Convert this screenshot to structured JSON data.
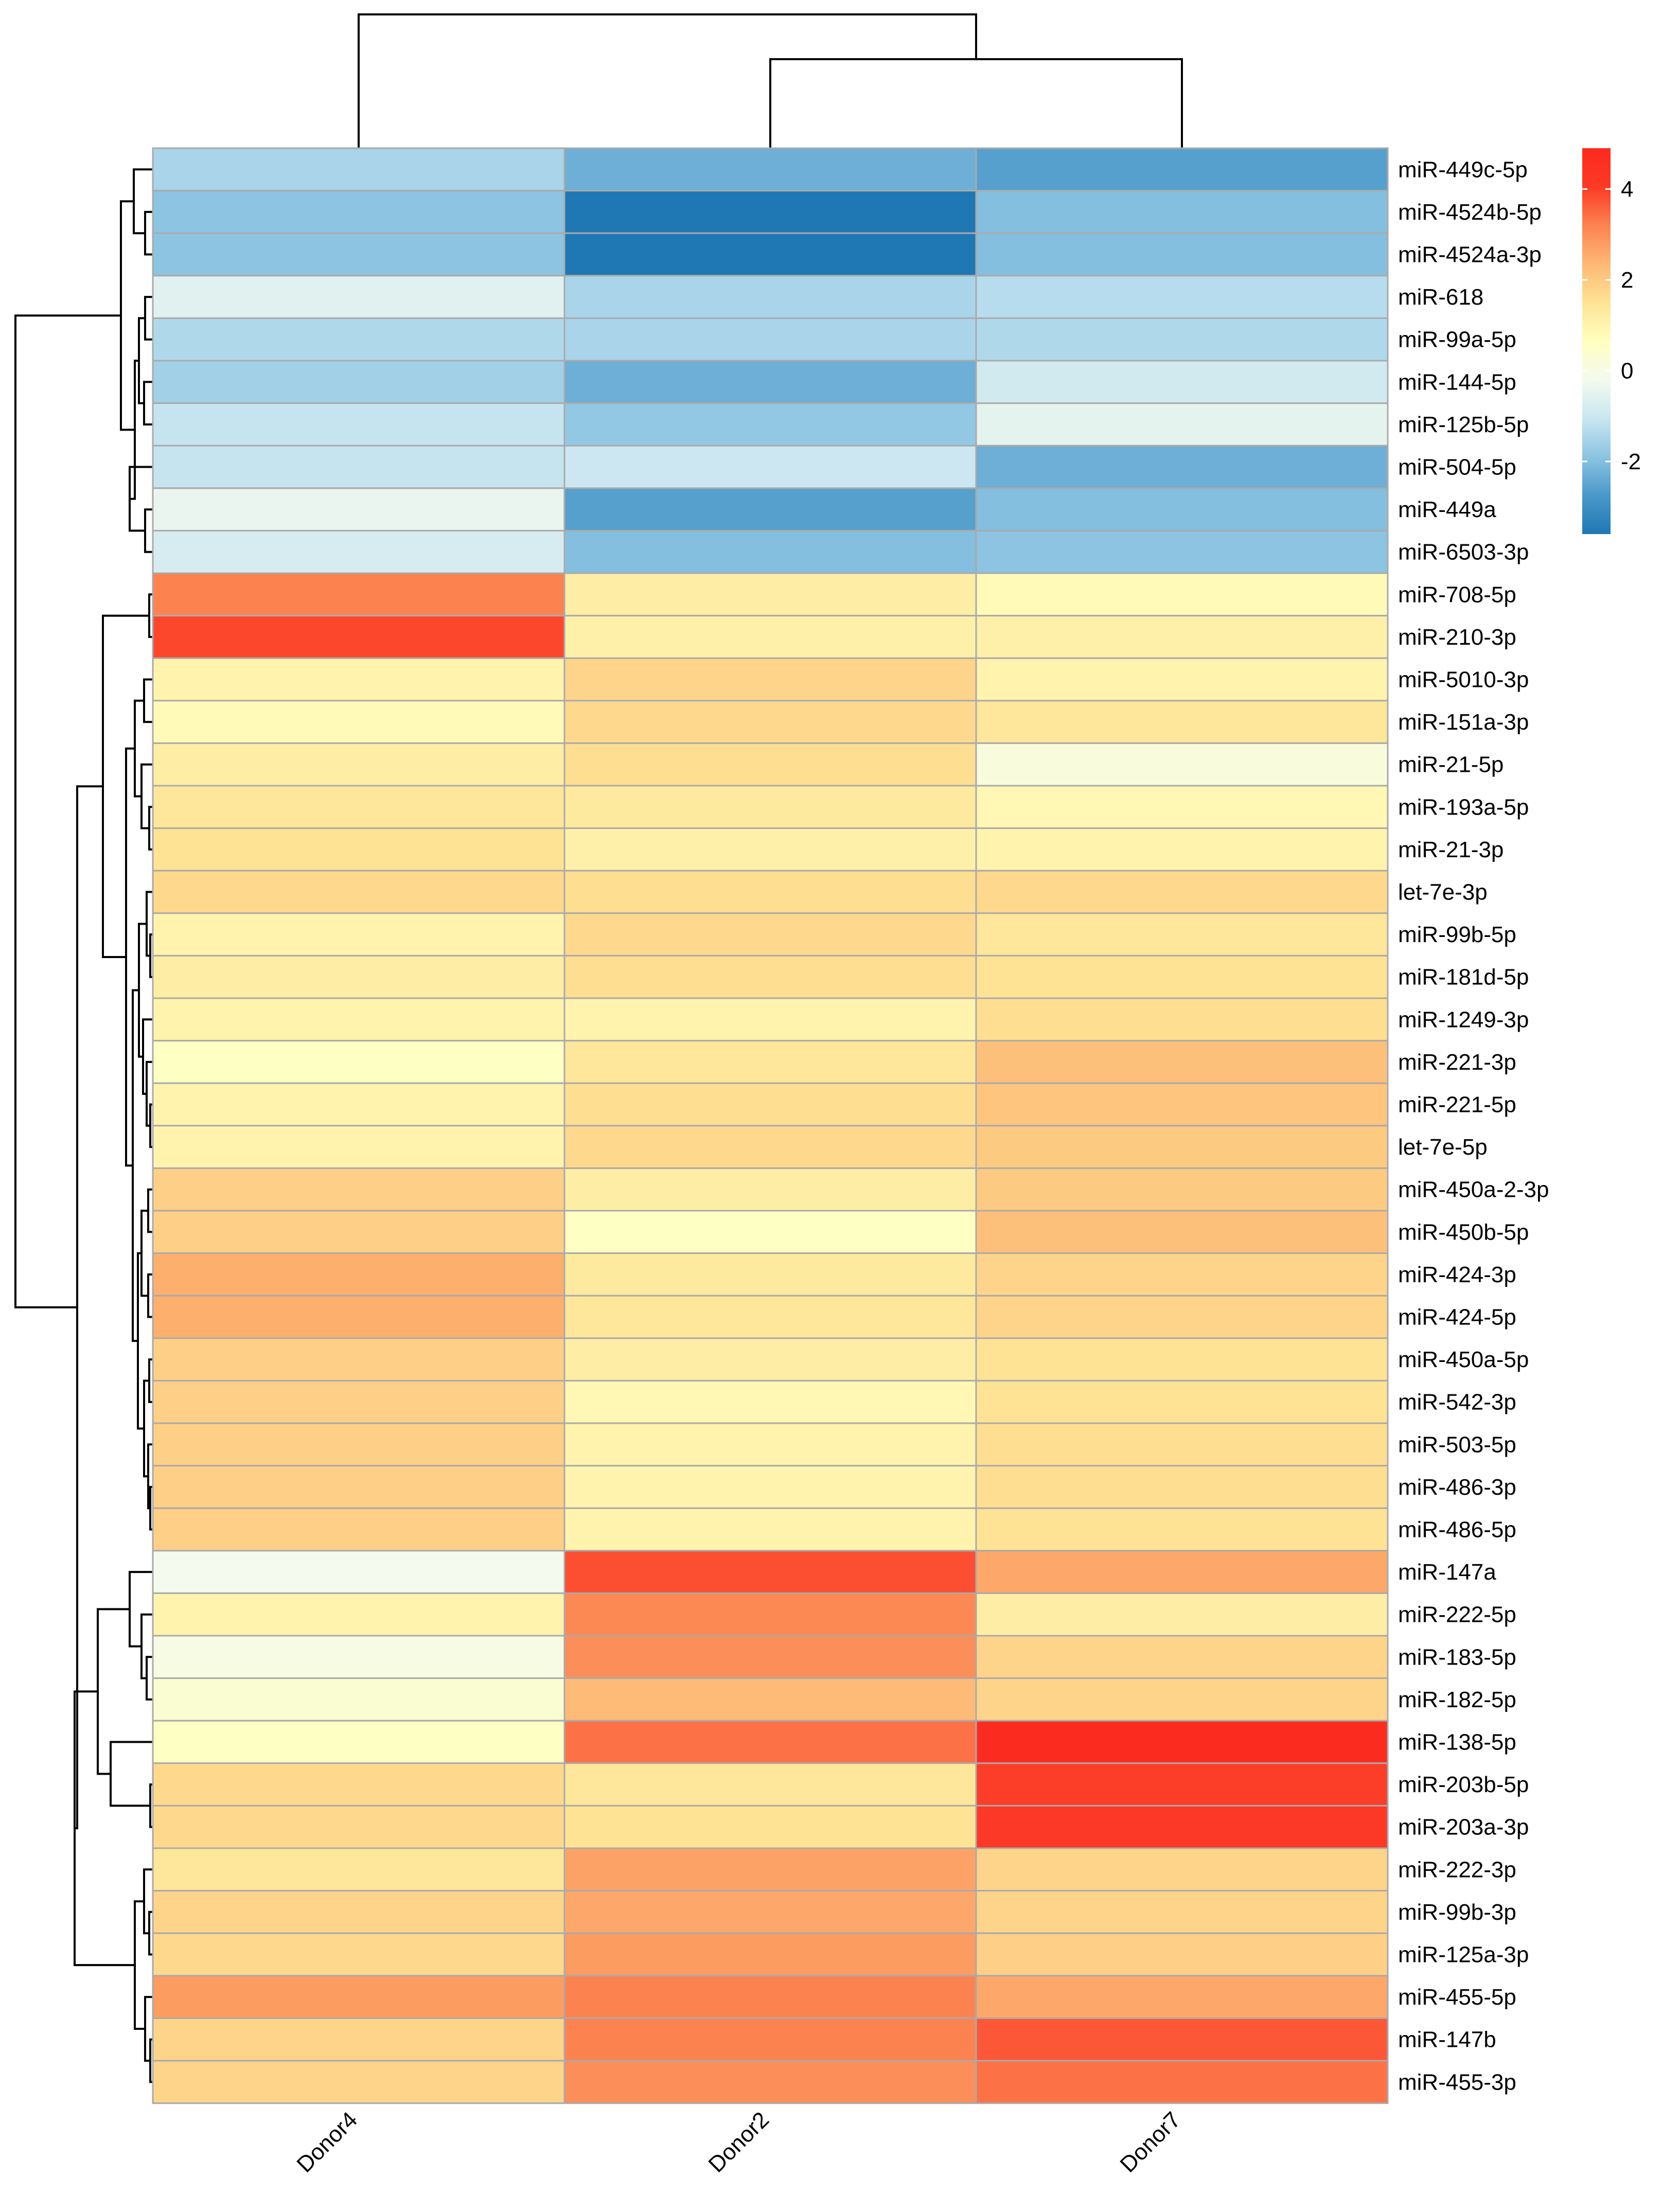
{
  "chart_data": {
    "type": "heatmap",
    "title": "",
    "columns": [
      "Donor4",
      "Donor2",
      "Donor7"
    ],
    "rows": [
      {
        "label": "miR-449c-5p",
        "values": [
          -1.5,
          -2.3,
          -2.6
        ]
      },
      {
        "label": "miR-4524b-5p",
        "values": [
          -1.9,
          -3.6,
          -2.0
        ]
      },
      {
        "label": "miR-4524a-3p",
        "values": [
          -1.9,
          -3.6,
          -2.0
        ]
      },
      {
        "label": "miR-618",
        "values": [
          -0.6,
          -1.5,
          -1.3
        ]
      },
      {
        "label": "miR-99a-5p",
        "values": [
          -1.4,
          -1.5,
          -1.4
        ]
      },
      {
        "label": "miR-144-5p",
        "values": [
          -1.6,
          -2.3,
          -0.9
        ]
      },
      {
        "label": "miR-125b-5p",
        "values": [
          -1.1,
          -1.8,
          -0.5
        ]
      },
      {
        "label": "miR-504-5p",
        "values": [
          -1.1,
          -1.0,
          -2.3
        ]
      },
      {
        "label": "miR-449a",
        "values": [
          -0.4,
          -2.6,
          -2.0
        ]
      },
      {
        "label": "miR-6503-3p",
        "values": [
          -0.8,
          -2.0,
          -1.9
        ]
      },
      {
        "label": "miR-708-5p",
        "values": [
          3.2,
          1.2,
          0.8
        ]
      },
      {
        "label": "miR-210-3p",
        "values": [
          3.9,
          1.1,
          1.1
        ]
      },
      {
        "label": "miR-5010-3p",
        "values": [
          1.0,
          1.8,
          1.0
        ]
      },
      {
        "label": "miR-151a-3p",
        "values": [
          0.8,
          1.7,
          1.4
        ]
      },
      {
        "label": "miR-21-5p",
        "values": [
          1.2,
          1.6,
          0.1
        ]
      },
      {
        "label": "miR-193a-5p",
        "values": [
          1.4,
          1.3,
          0.9
        ]
      },
      {
        "label": "miR-21-3p",
        "values": [
          1.5,
          1.1,
          1.0
        ]
      },
      {
        "label": "let-7e-3p",
        "values": [
          1.7,
          1.6,
          1.7
        ]
      },
      {
        "label": "miR-99b-5p",
        "values": [
          1.0,
          1.7,
          1.4
        ]
      },
      {
        "label": "miR-181d-5p",
        "values": [
          1.2,
          1.6,
          1.5
        ]
      },
      {
        "label": "miR-1249-3p",
        "values": [
          1.0,
          1.0,
          1.6
        ]
      },
      {
        "label": "miR-221-3p",
        "values": [
          0.6,
          1.4,
          2.2
        ]
      },
      {
        "label": "miR-221-5p",
        "values": [
          1.0,
          1.6,
          2.1
        ]
      },
      {
        "label": "let-7e-5p",
        "values": [
          1.0,
          1.7,
          2.0
        ]
      },
      {
        "label": "miR-450a-2-3p",
        "values": [
          1.9,
          1.2,
          2.0
        ]
      },
      {
        "label": "miR-450b-5p",
        "values": [
          1.9,
          0.6,
          2.2
        ]
      },
      {
        "label": "miR-424-3p",
        "values": [
          2.5,
          1.3,
          1.8
        ]
      },
      {
        "label": "miR-424-5p",
        "values": [
          2.5,
          1.4,
          1.8
        ]
      },
      {
        "label": "miR-450a-5p",
        "values": [
          1.9,
          1.2,
          1.5
        ]
      },
      {
        "label": "miR-542-3p",
        "values": [
          1.9,
          0.9,
          1.5
        ]
      },
      {
        "label": "miR-503-5p",
        "values": [
          1.9,
          1.0,
          1.6
        ]
      },
      {
        "label": "miR-486-3p",
        "values": [
          1.9,
          1.0,
          1.6
        ]
      },
      {
        "label": "miR-486-5p",
        "values": [
          1.9,
          1.0,
          1.5
        ]
      },
      {
        "label": "miR-147a",
        "values": [
          -0.2,
          3.8,
          2.6
        ]
      },
      {
        "label": "miR-222-5p",
        "values": [
          1.0,
          3.1,
          1.2
        ]
      },
      {
        "label": "miR-183-5p",
        "values": [
          0.0,
          3.0,
          1.8
        ]
      },
      {
        "label": "miR-182-5p",
        "values": [
          0.3,
          2.3,
          1.8
        ]
      },
      {
        "label": "miR-138-5p",
        "values": [
          0.6,
          3.4,
          4.8
        ]
      },
      {
        "label": "miR-203b-5p",
        "values": [
          1.7,
          1.4,
          4.0
        ]
      },
      {
        "label": "miR-203a-3p",
        "values": [
          1.7,
          1.5,
          4.1
        ]
      },
      {
        "label": "miR-222-3p",
        "values": [
          1.4,
          2.7,
          1.8
        ]
      },
      {
        "label": "miR-99b-3p",
        "values": [
          1.8,
          2.6,
          1.8
        ]
      },
      {
        "label": "miR-125a-3p",
        "values": [
          1.7,
          2.8,
          1.9
        ]
      },
      {
        "label": "miR-455-5p",
        "values": [
          2.8,
          3.2,
          2.6
        ]
      },
      {
        "label": "miR-147b",
        "values": [
          1.8,
          3.2,
          3.7
        ]
      },
      {
        "label": "miR-455-3p",
        "values": [
          1.8,
          3.0,
          3.4
        ]
      }
    ],
    "color_scale": {
      "min": -3.6,
      "max": 4.9,
      "colors": [
        "#1f78b4",
        "#4a98c9",
        "#8cc4e2",
        "#c9e6f1",
        "#f4faee",
        "#ffffbf",
        "#fee395",
        "#fdb875",
        "#fc8350",
        "#fc3a26",
        "#fb2a1e"
      ],
      "ticks": [
        4,
        2,
        0,
        -2
      ],
      "tick_labels": [
        "4",
        "2",
        "0",
        "-2"
      ]
    },
    "cell_border_color": "#aaaaaa",
    "dendrogram_color": "#000000"
  }
}
